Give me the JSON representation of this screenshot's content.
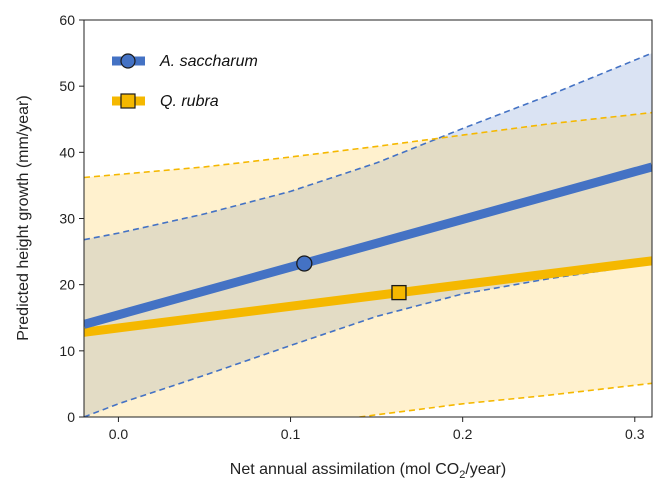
{
  "chart_data": {
    "type": "line",
    "xlabel": {
      "prefix": "Net annual assimilation (mol CO",
      "sub": "2",
      "suffix": "/year)"
    },
    "ylabel": "Predicted height growth (mm/year)",
    "xlim": [
      -0.02,
      0.31
    ],
    "ylim": [
      0,
      60
    ],
    "x_ticks": [
      0.0,
      0.1,
      0.2,
      0.3
    ],
    "x_tick_labels": [
      "0.0",
      "0.1",
      "0.2",
      "0.3"
    ],
    "y_ticks": [
      0,
      10,
      20,
      30,
      40,
      50,
      60
    ],
    "y_tick_labels": [
      "0",
      "10",
      "20",
      "30",
      "40",
      "50",
      "60"
    ],
    "grid": false,
    "legend_position": "top-left",
    "series": [
      {
        "name": "A. saccharum",
        "color": "#4472C4",
        "fill": "rgba(68,114,196,0.20)",
        "marker": "circle",
        "line": {
          "x": [
            -0.02,
            0.31
          ],
          "y": [
            14.0,
            37.8
          ]
        },
        "ci_lower": {
          "x": [
            -0.02,
            0.0,
            0.05,
            0.1,
            0.15,
            0.2,
            0.25,
            0.31
          ],
          "y": [
            0.0,
            2.0,
            6.3,
            10.8,
            15.2,
            18.6,
            20.9,
            23.2
          ]
        },
        "ci_upper": {
          "x": [
            -0.02,
            0.0,
            0.05,
            0.1,
            0.15,
            0.2,
            0.25,
            0.31
          ],
          "y": [
            26.8,
            27.8,
            30.7,
            34.1,
            38.4,
            43.6,
            48.6,
            55.0
          ]
        },
        "point": {
          "x": 0.108,
          "y": 23.2
        }
      },
      {
        "name": "Q. rubra",
        "color": "#F5B800",
        "fill": "rgba(255,200,60,0.25)",
        "marker": "square",
        "line": {
          "x": [
            -0.02,
            0.31
          ],
          "y": [
            12.8,
            23.6
          ]
        },
        "ci_lower": {
          "x": [
            0.14,
            0.2,
            0.25,
            0.31
          ],
          "y": [
            0.0,
            2.0,
            3.3,
            5.1
          ]
        },
        "ci_upper": {
          "x": [
            -0.02,
            0.05,
            0.1,
            0.15,
            0.2,
            0.25,
            0.31
          ],
          "y": [
            36.2,
            37.8,
            39.3,
            40.9,
            42.6,
            44.3,
            46.0
          ]
        },
        "point": {
          "x": 0.163,
          "y": 18.8
        }
      }
    ]
  }
}
